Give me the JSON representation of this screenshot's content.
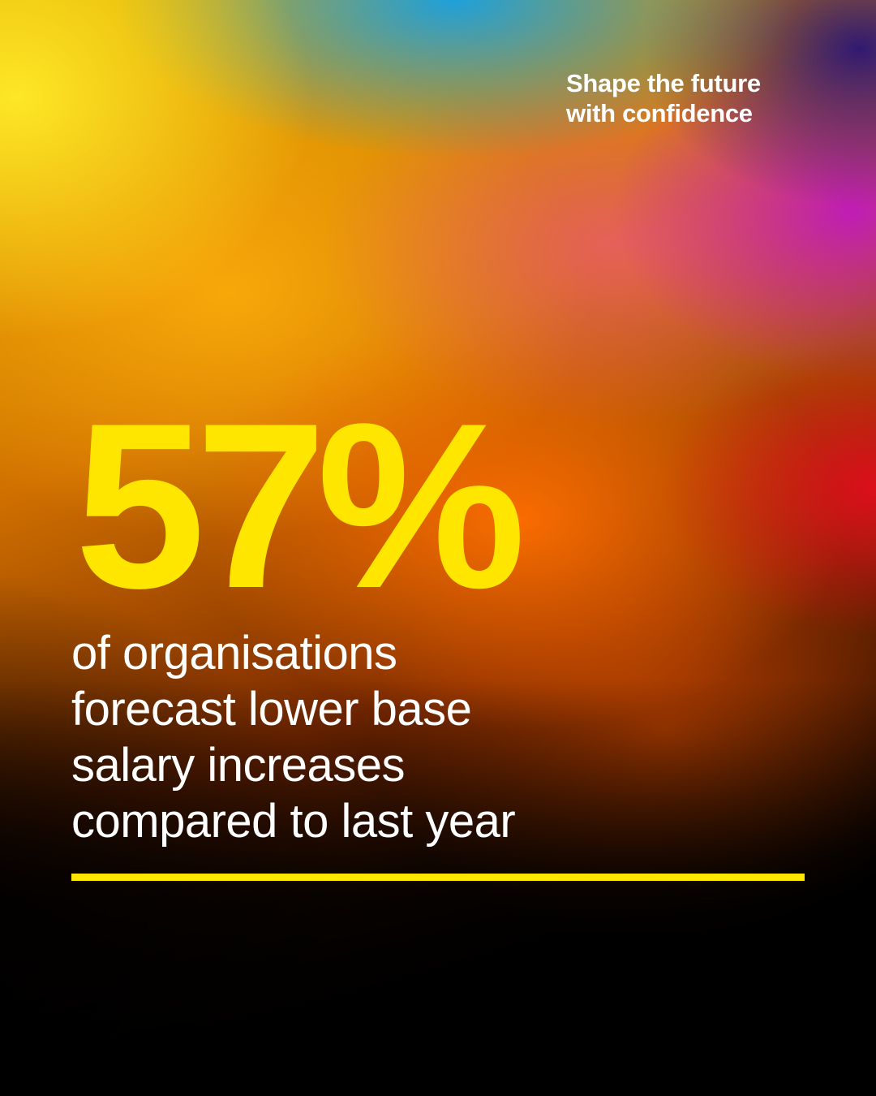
{
  "tagline": {
    "line1": "Shape the future",
    "line2": "with confidence"
  },
  "stat": {
    "value": "57%"
  },
  "description": {
    "lines": [
      "of organisations",
      "forecast lower base",
      "salary increases",
      "compared to last year"
    ]
  },
  "colors": {
    "accent_yellow": "#ffe600",
    "text_white": "#ffffff",
    "background_dark": "#000000"
  }
}
